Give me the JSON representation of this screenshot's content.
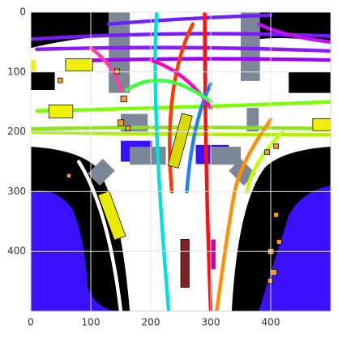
{
  "chart_data": {
    "type": "image",
    "xlim": [
      0,
      500
    ],
    "ylim": [
      500,
      0
    ],
    "xticks": [
      0,
      100,
      200,
      300,
      400
    ],
    "yticks": [
      0,
      100,
      200,
      300,
      400
    ],
    "grid": true
  }
}
